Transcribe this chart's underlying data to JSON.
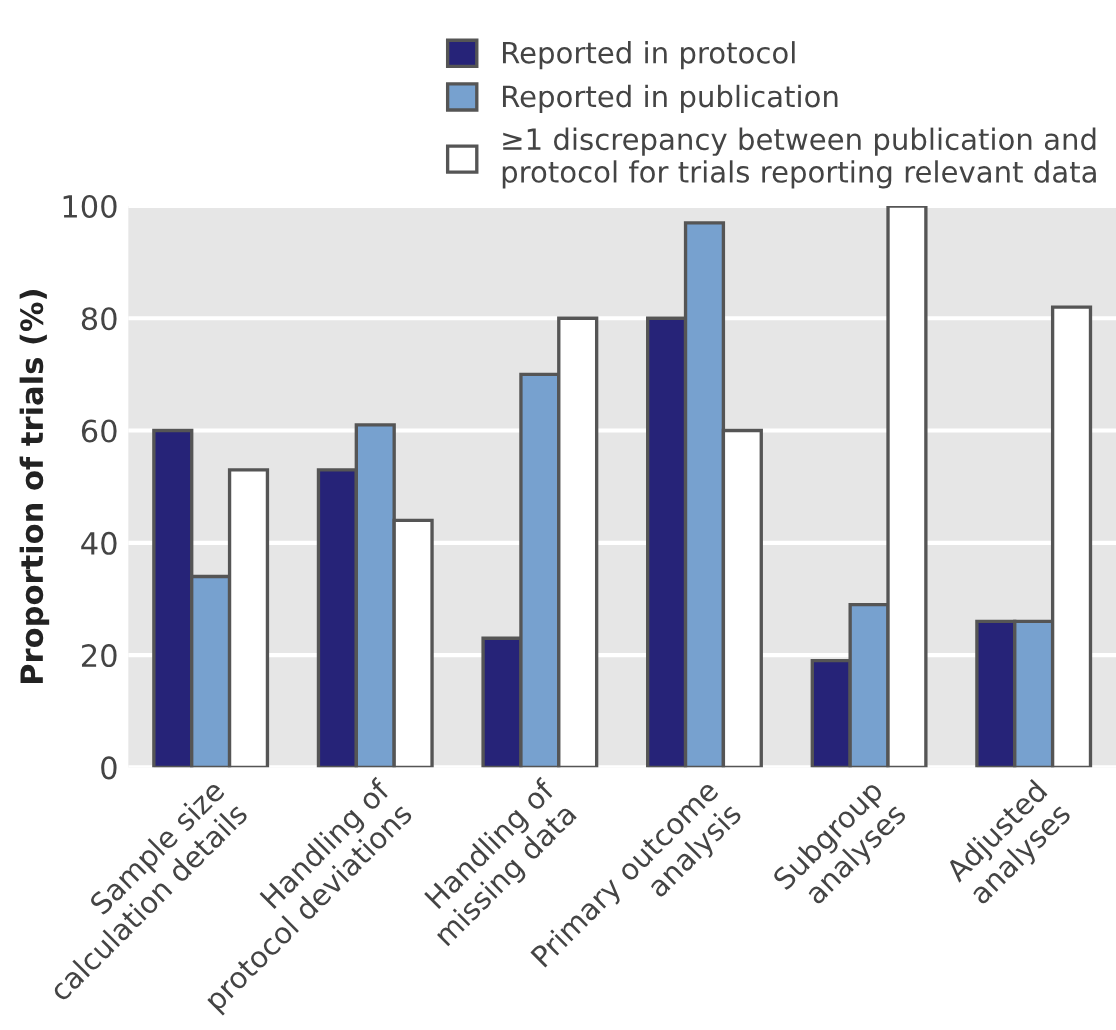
{
  "chart_data": {
    "type": "bar",
    "ylabel": "Proportion of trials (%)",
    "categories": [
      "Sample size\ncalculation details",
      "Handling of\nprotocol deviations",
      "Handling of\nmissing data",
      "Primary outcome\nanalysis",
      "Subgroup\nanalyses",
      "Adjusted\nanalyses"
    ],
    "series": [
      {
        "name": "Reported in protocol",
        "color": "#262378",
        "values": [
          60,
          53,
          23,
          80,
          19,
          26
        ]
      },
      {
        "name": "Reported in publication",
        "color": "#77a1cf",
        "values": [
          34,
          61,
          70,
          97,
          29,
          26
        ]
      },
      {
        "name": "≥1 discrepancy between publication and\nprotocol for trials reporting relevant data",
        "color": "#ffffff",
        "values": [
          53,
          44,
          80,
          60,
          100,
          82
        ]
      }
    ],
    "ylim": [
      0,
      100
    ],
    "yticks": [
      0,
      20,
      40,
      60,
      80,
      100
    ],
    "grid": "y",
    "legend": "top right"
  }
}
